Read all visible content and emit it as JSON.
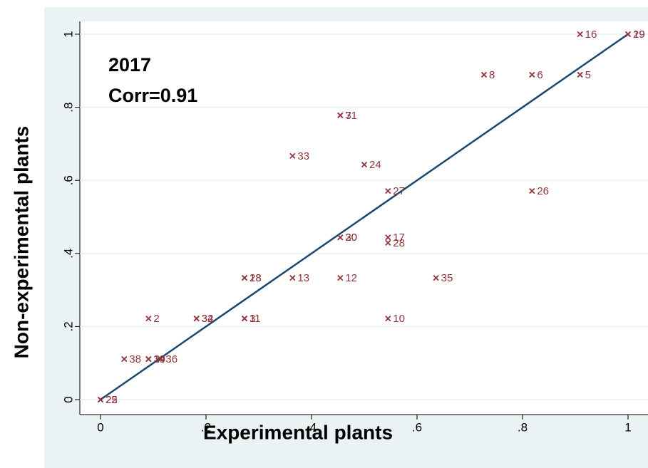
{
  "chart_data": {
    "type": "scatter",
    "annotations": [
      "2017",
      "Corr=0.91"
    ],
    "xlabel": "Experimental plants",
    "ylabel": "Non-experimental plants",
    "color": "#90353b",
    "x": [
      0.909,
      1,
      1,
      0.727,
      0.818,
      0.909,
      0.4545,
      0.4545,
      0.364,
      0.5,
      0.545,
      0.818,
      0.4545,
      0.4545,
      0.545,
      0.545,
      0.273,
      0.273,
      0.364,
      0.4545,
      0.636,
      0.091,
      0.182,
      0.182,
      0.273,
      0.273,
      0.545,
      0.045,
      0.091,
      0.091,
      0.114,
      0,
      0
    ],
    "values": [
      1,
      1,
      1,
      0.889,
      0.889,
      0.889,
      0.778,
      0.778,
      0.667,
      0.643,
      0.571,
      0.571,
      0.444,
      0.444,
      0.444,
      0.429,
      0.333,
      0.333,
      0.333,
      0.333,
      0.333,
      0.222,
      0.222,
      0.222,
      0.222,
      0.222,
      0.222,
      0.111,
      0.111,
      0.111,
      0.111,
      0,
      0
    ],
    "labels": [
      "16",
      "19",
      "29",
      "8",
      "6",
      "5",
      "7",
      "31",
      "33",
      "24",
      "27",
      "26",
      "20",
      "30",
      "17",
      "28",
      "18",
      "23",
      "13",
      "12",
      "35",
      "2",
      "32",
      "34",
      "3",
      "11",
      "10",
      "38",
      "39",
      "14",
      "36",
      "25",
      "22"
    ],
    "fit_line": {
      "x": [
        0,
        1
      ],
      "values": [
        0,
        1
      ],
      "color": "#1a476f"
    },
    "xlim": [
      0,
      1
    ],
    "ylim": [
      0,
      1
    ],
    "xticks": [
      0,
      {
        "value": 0.2,
        "label": ".2"
      },
      {
        "value": 0.4,
        "label": ".4"
      },
      {
        "value": 0.6,
        "label": ".6"
      },
      {
        "value": 0.8,
        "label": ".8"
      },
      1
    ],
    "yticks": [
      0,
      {
        "value": 0.2,
        "label": ".2"
      },
      {
        "value": 0.4,
        "label": ".4"
      },
      {
        "value": 0.6,
        "label": ".6"
      },
      {
        "value": 0.8,
        "label": ".8"
      },
      1
    ],
    "grid": true
  }
}
